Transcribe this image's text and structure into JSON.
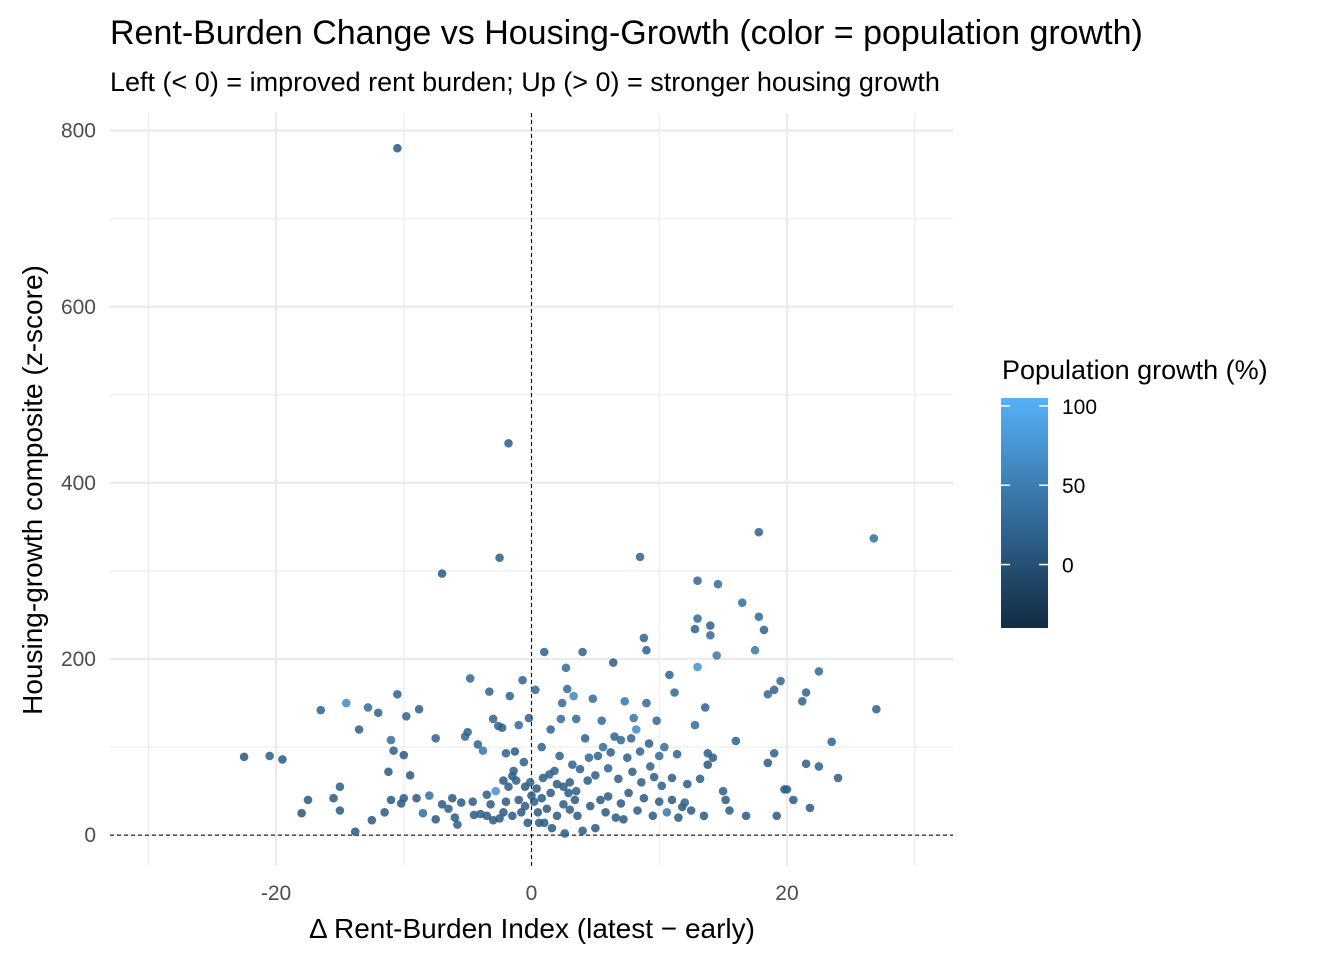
{
  "chart_data": {
    "type": "scatter",
    "title": "Rent-Burden Change vs Housing-Growth (color = population growth)",
    "subtitle": "Left (< 0) = improved rent burden; Up (> 0) = stronger housing growth",
    "xlabel": "Δ Rent-Burden Index (latest − early)",
    "ylabel": "Housing-growth composite (z-score)",
    "xlim": [
      -33,
      33
    ],
    "ylim": [
      -35,
      820
    ],
    "x_ticks": [
      -20,
      0,
      20
    ],
    "y_ticks": [
      0,
      200,
      400,
      600,
      800
    ],
    "x_tick_labels": [
      "-20",
      "0",
      "20"
    ],
    "y_tick_labels": [
      "0",
      "200",
      "400",
      "600",
      "800"
    ],
    "grid": true,
    "reference_lines": {
      "x": 0,
      "y": 0,
      "style": "dashed"
    },
    "legend": {
      "title": "Population growth (%)",
      "placement": "right",
      "ticks": [
        0,
        50,
        100
      ],
      "tick_labels": [
        "0",
        "50",
        "100"
      ],
      "range": [
        -40,
        105
      ],
      "color_low": "#132b43",
      "color_high": "#56b1f7"
    },
    "points": [
      [
        -10.5,
        780,
        10
      ],
      [
        -1.8,
        445,
        15
      ],
      [
        -7,
        297,
        10
      ],
      [
        -2.5,
        315,
        15
      ],
      [
        8.5,
        316,
        20
      ],
      [
        17.8,
        344,
        18
      ],
      [
        26.8,
        337,
        30
      ],
      [
        27,
        143,
        20
      ],
      [
        -22.5,
        89,
        5
      ],
      [
        -20.5,
        90,
        15
      ],
      [
        -19.5,
        86,
        10
      ],
      [
        -17.5,
        40,
        10
      ],
      [
        -18,
        25,
        5
      ],
      [
        -16.5,
        142,
        20
      ],
      [
        -15.5,
        42,
        10
      ],
      [
        -15,
        55,
        15
      ],
      [
        -15,
        28,
        10
      ],
      [
        -14.5,
        150,
        60
      ],
      [
        -13.8,
        4,
        10
      ],
      [
        -13.5,
        120,
        15
      ],
      [
        -12.8,
        145,
        30
      ],
      [
        -12.5,
        17,
        10
      ],
      [
        -12,
        139,
        20
      ],
      [
        -11.5,
        26,
        10
      ],
      [
        -11.2,
        72,
        10
      ],
      [
        -11,
        108,
        30
      ],
      [
        -11,
        40,
        10
      ],
      [
        -10.8,
        96,
        15
      ],
      [
        -10.5,
        160,
        20
      ],
      [
        -10.2,
        36,
        10
      ],
      [
        -10,
        91,
        10
      ],
      [
        -10,
        42,
        15
      ],
      [
        -9.8,
        135,
        20
      ],
      [
        -9.5,
        68,
        10
      ],
      [
        -9,
        42,
        10
      ],
      [
        -8.8,
        143,
        15
      ],
      [
        -8.5,
        25,
        30
      ],
      [
        -8,
        45,
        30
      ],
      [
        -7.5,
        110,
        20
      ],
      [
        -7.5,
        18,
        10
      ],
      [
        -7,
        35,
        10
      ],
      [
        -6.5,
        30,
        15
      ],
      [
        -6.2,
        42,
        10
      ],
      [
        -6,
        20,
        10
      ],
      [
        -5.8,
        12,
        15
      ],
      [
        -5.5,
        37,
        10
      ],
      [
        -5.2,
        112,
        25
      ],
      [
        -5,
        117,
        20
      ],
      [
        -4.8,
        178,
        25
      ],
      [
        -4.6,
        38,
        10
      ],
      [
        -4.5,
        23,
        10
      ],
      [
        -4.2,
        103,
        20
      ],
      [
        -4,
        24,
        15
      ],
      [
        -3.8,
        96,
        40
      ],
      [
        -3.5,
        22,
        10
      ],
      [
        -3.5,
        46,
        15
      ],
      [
        -3.3,
        163,
        20
      ],
      [
        -3.2,
        35,
        10
      ],
      [
        -3,
        132,
        20
      ],
      [
        -3,
        17,
        10
      ],
      [
        -2.8,
        50,
        70
      ],
      [
        -2.6,
        124,
        20
      ],
      [
        -2.5,
        19,
        10
      ],
      [
        -2.3,
        122,
        15
      ],
      [
        -2.2,
        26,
        10
      ],
      [
        -2.2,
        62,
        10
      ],
      [
        -2,
        93,
        15
      ],
      [
        -2,
        38,
        10
      ],
      [
        -1.8,
        55,
        10
      ],
      [
        -1.7,
        158,
        20
      ],
      [
        -1.5,
        67,
        10
      ],
      [
        -1.5,
        22,
        10
      ],
      [
        -1.4,
        73,
        15
      ],
      [
        -1.3,
        95,
        10
      ],
      [
        -1.2,
        62,
        15
      ],
      [
        -1,
        125,
        25
      ],
      [
        -1,
        40,
        10
      ],
      [
        -0.8,
        26,
        10
      ],
      [
        -0.7,
        176,
        20
      ],
      [
        -0.6,
        83,
        15
      ],
      [
        -0.5,
        55,
        10
      ],
      [
        -0.5,
        33,
        10
      ],
      [
        -0.3,
        14,
        10
      ],
      [
        -0.2,
        133,
        20
      ],
      [
        -0.1,
        60,
        15
      ],
      [
        0,
        45,
        10
      ],
      [
        0.2,
        38,
        15
      ],
      [
        0.3,
        165,
        25
      ],
      [
        0.4,
        53,
        10
      ],
      [
        0.5,
        26,
        10
      ],
      [
        0.6,
        14,
        15
      ],
      [
        0.8,
        100,
        20
      ],
      [
        0.8,
        42,
        10
      ],
      [
        0.9,
        65,
        15
      ],
      [
        1,
        14,
        10
      ],
      [
        1,
        208,
        20
      ],
      [
        1.2,
        30,
        10
      ],
      [
        1.4,
        69,
        15
      ],
      [
        1.5,
        120,
        20
      ],
      [
        1.5,
        48,
        10
      ],
      [
        1.6,
        8,
        10
      ],
      [
        1.8,
        73,
        15
      ],
      [
        2,
        58,
        10
      ],
      [
        2,
        22,
        10
      ],
      [
        2.2,
        90,
        20
      ],
      [
        2.3,
        132,
        30
      ],
      [
        2.4,
        150,
        25
      ],
      [
        2.5,
        55,
        10
      ],
      [
        2.5,
        35,
        15
      ],
      [
        2.6,
        2,
        10
      ],
      [
        2.7,
        190,
        30
      ],
      [
        2.8,
        166,
        25
      ],
      [
        2.9,
        48,
        10
      ],
      [
        3,
        29,
        15
      ],
      [
        3,
        60,
        10
      ],
      [
        3.2,
        80,
        20
      ],
      [
        3.3,
        158,
        60
      ],
      [
        3.4,
        40,
        10
      ],
      [
        3.5,
        50,
        15
      ],
      [
        3.5,
        132,
        25
      ],
      [
        3.6,
        22,
        10
      ],
      [
        3.8,
        75,
        15
      ],
      [
        4,
        5,
        10
      ],
      [
        4,
        208,
        20
      ],
      [
        4.2,
        110,
        20
      ],
      [
        4.4,
        62,
        10
      ],
      [
        4.5,
        88,
        25
      ],
      [
        4.6,
        33,
        10
      ],
      [
        4.8,
        155,
        30
      ],
      [
        5,
        8,
        10
      ],
      [
        5,
        68,
        15
      ],
      [
        5.2,
        90,
        20
      ],
      [
        5.4,
        40,
        10
      ],
      [
        5.5,
        130,
        25
      ],
      [
        5.6,
        100,
        30
      ],
      [
        5.8,
        26,
        10
      ],
      [
        6,
        76,
        20
      ],
      [
        6,
        44,
        10
      ],
      [
        6.2,
        94,
        15
      ],
      [
        6.4,
        196,
        15
      ],
      [
        6.5,
        112,
        20
      ],
      [
        6.6,
        20,
        10
      ],
      [
        6.8,
        64,
        15
      ],
      [
        7,
        108,
        25
      ],
      [
        7,
        36,
        10
      ],
      [
        7.2,
        18,
        10
      ],
      [
        7.3,
        152,
        40
      ],
      [
        7.5,
        88,
        15
      ],
      [
        7.6,
        48,
        10
      ],
      [
        7.8,
        110,
        20
      ],
      [
        7.9,
        72,
        15
      ],
      [
        8,
        133,
        40
      ],
      [
        8.2,
        120,
        60
      ],
      [
        8.3,
        28,
        10
      ],
      [
        8.5,
        95,
        20
      ],
      [
        8.6,
        60,
        15
      ],
      [
        8.8,
        224,
        20
      ],
      [
        8.8,
        42,
        10
      ],
      [
        9,
        210,
        20
      ],
      [
        9,
        150,
        25
      ],
      [
        9.2,
        104,
        15
      ],
      [
        9.3,
        78,
        20
      ],
      [
        9.5,
        22,
        10
      ],
      [
        9.6,
        66,
        15
      ],
      [
        9.8,
        130,
        25
      ],
      [
        10,
        90,
        25
      ],
      [
        10,
        38,
        10
      ],
      [
        10.2,
        56,
        15
      ],
      [
        10.4,
        100,
        30
      ],
      [
        10.6,
        26,
        40
      ],
      [
        10.8,
        182,
        20
      ],
      [
        11,
        65,
        15
      ],
      [
        11,
        40,
        10
      ],
      [
        11.2,
        162,
        25
      ],
      [
        11.4,
        92,
        20
      ],
      [
        11.5,
        20,
        10
      ],
      [
        11.8,
        32,
        10
      ],
      [
        12,
        37,
        20
      ],
      [
        12.2,
        58,
        15
      ],
      [
        12.5,
        28,
        10
      ],
      [
        12.8,
        234,
        20
      ],
      [
        12.8,
        125,
        30
      ],
      [
        13,
        246,
        25
      ],
      [
        13,
        289,
        25
      ],
      [
        13,
        191,
        70
      ],
      [
        13.2,
        64,
        15
      ],
      [
        13.5,
        22,
        10
      ],
      [
        13.6,
        145,
        20
      ],
      [
        13.8,
        93,
        15
      ],
      [
        13.8,
        80,
        10
      ],
      [
        14,
        238,
        20
      ],
      [
        14,
        227,
        25
      ],
      [
        14.2,
        88,
        15
      ],
      [
        14.5,
        204,
        40
      ],
      [
        14.6,
        285,
        30
      ],
      [
        15,
        50,
        15
      ],
      [
        15.2,
        40,
        10
      ],
      [
        15.5,
        28,
        10
      ],
      [
        16,
        107,
        20
      ],
      [
        16.5,
        264,
        30
      ],
      [
        16.8,
        22,
        10
      ],
      [
        17.5,
        210,
        40
      ],
      [
        17.8,
        248,
        25
      ],
      [
        18.2,
        233,
        20
      ],
      [
        18.5,
        160,
        25
      ],
      [
        18.5,
        82,
        10
      ],
      [
        19,
        165,
        20
      ],
      [
        19,
        93,
        15
      ],
      [
        19.2,
        22,
        10
      ],
      [
        19.5,
        175,
        25
      ],
      [
        19.8,
        52,
        15
      ],
      [
        20,
        52,
        15
      ],
      [
        20.5,
        40,
        10
      ],
      [
        21.2,
        152,
        20
      ],
      [
        21.5,
        162,
        20
      ],
      [
        21.5,
        81,
        15
      ],
      [
        21.8,
        31,
        10
      ],
      [
        22.5,
        186,
        25
      ],
      [
        22.5,
        78,
        15
      ],
      [
        23.5,
        106,
        20
      ],
      [
        24,
        65,
        15
      ]
    ]
  }
}
